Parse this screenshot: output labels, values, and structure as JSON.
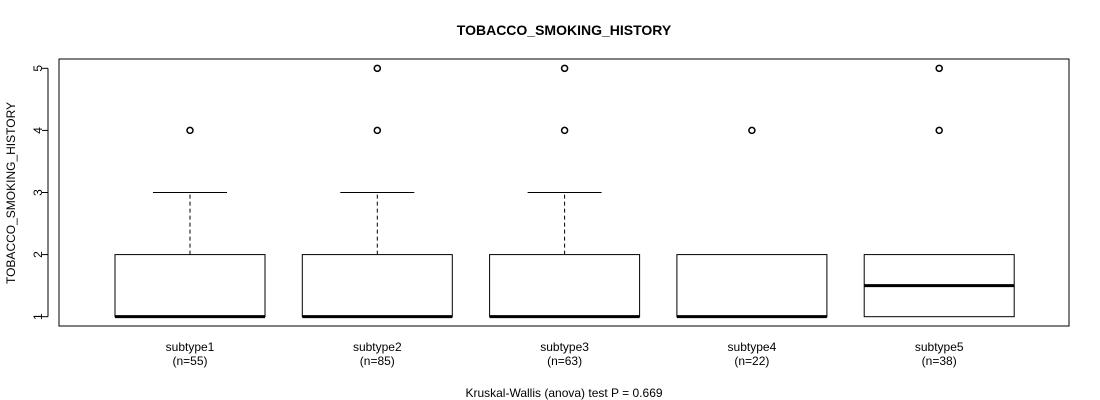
{
  "chart_data": {
    "type": "boxplot",
    "title": "TOBACCO_SMOKING_HISTORY",
    "ylabel": "TOBACCO_SMOKING_HISTORY",
    "xlabel": "",
    "footnote": "Kruskal-Wallis (anova) test P = 0.669",
    "ylim": [
      0.85,
      5.15
    ],
    "yticks": [
      "1",
      "2",
      "3",
      "4",
      "5"
    ],
    "grid": false,
    "categories": [
      "subtype1",
      "subtype2",
      "subtype3",
      "subtype4",
      "subtype5"
    ],
    "counts": [
      "(n=55)",
      "(n=85)",
      "(n=63)",
      "(n=22)",
      "(n=38)"
    ],
    "boxes": [
      {
        "name": "subtype1",
        "whisker_low": 1,
        "q1": 1,
        "median": 1,
        "q3": 2,
        "whisker_high": 3,
        "outliers": [
          4
        ]
      },
      {
        "name": "subtype2",
        "whisker_low": 1,
        "q1": 1,
        "median": 1,
        "q3": 2,
        "whisker_high": 3,
        "outliers": [
          4,
          5
        ]
      },
      {
        "name": "subtype3",
        "whisker_low": 1,
        "q1": 1,
        "median": 1,
        "q3": 2,
        "whisker_high": 3,
        "outliers": [
          4,
          5
        ]
      },
      {
        "name": "subtype4",
        "whisker_low": 1,
        "q1": 1,
        "median": 1,
        "q3": 2,
        "whisker_high": 2,
        "outliers": [
          4
        ]
      },
      {
        "name": "subtype5",
        "whisker_low": 1,
        "q1": 1,
        "median": 1.5,
        "q3": 2,
        "whisker_high": 2,
        "outliers": [
          4,
          5
        ]
      }
    ]
  }
}
